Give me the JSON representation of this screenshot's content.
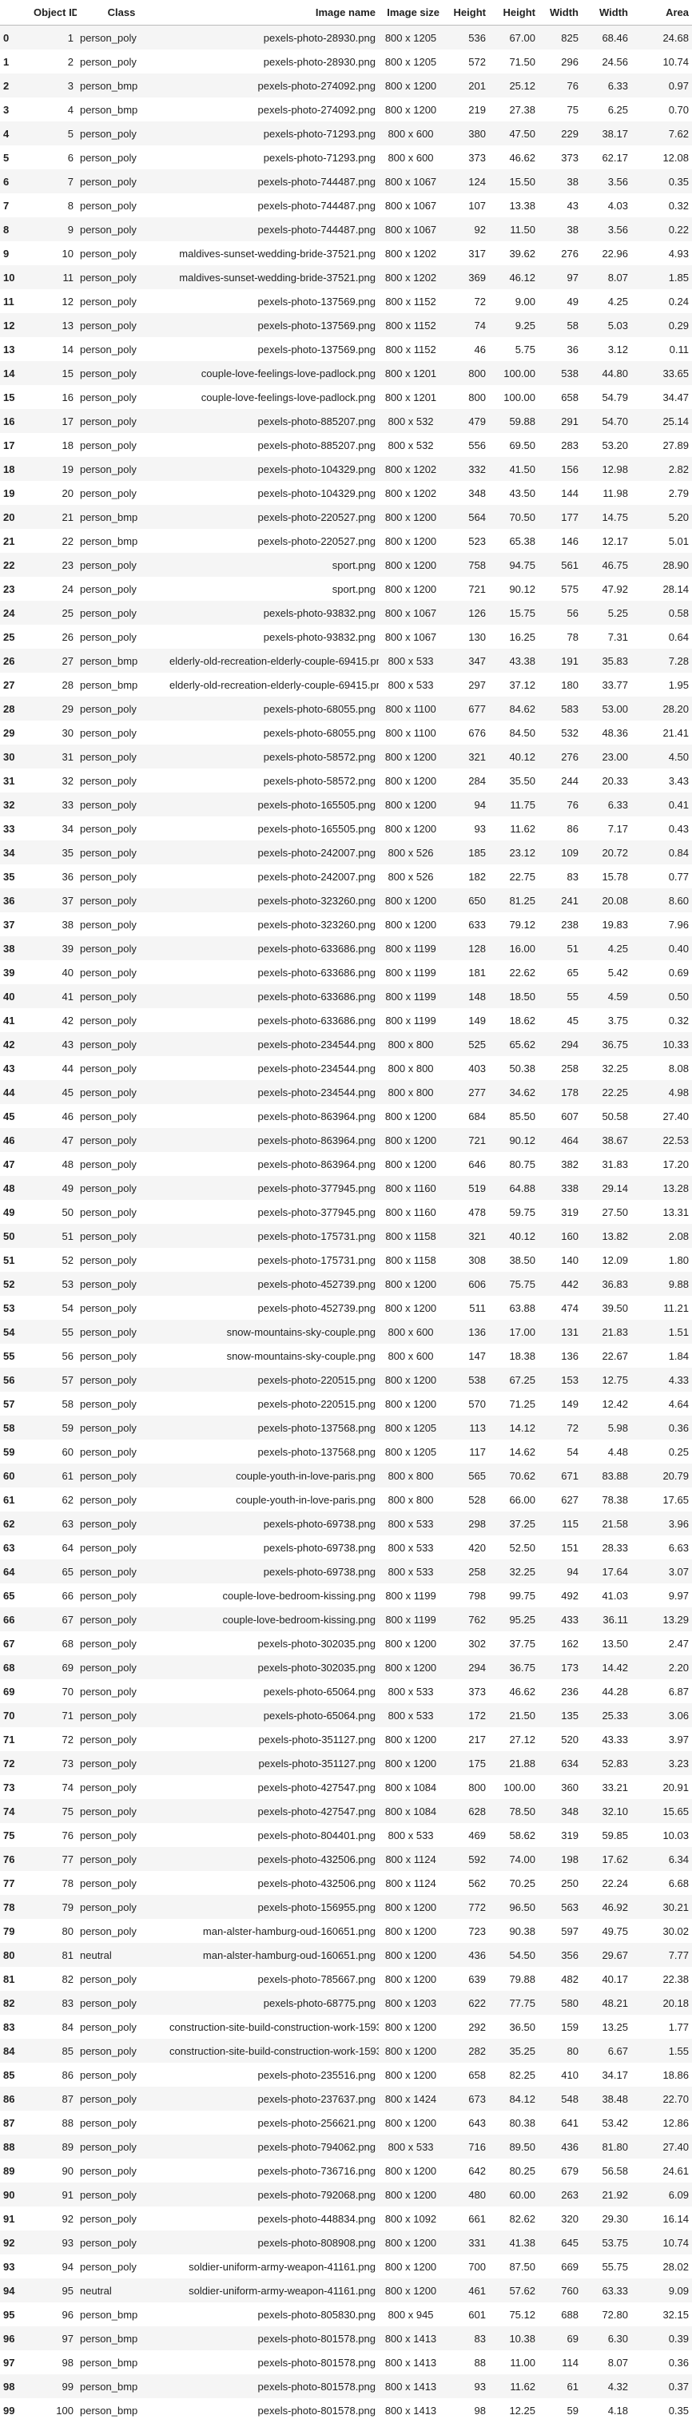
{
  "columns": [
    "",
    "Object ID",
    "Class",
    "Image name",
    "Image size",
    "Height",
    "Height",
    "Width",
    "Width",
    "Area"
  ],
  "rows": [
    [
      "0",
      "1",
      "person_poly",
      "pexels-photo-28930.png",
      "800 x 1205",
      "536",
      "67.00",
      "825",
      "68.46",
      "24.68"
    ],
    [
      "1",
      "2",
      "person_poly",
      "pexels-photo-28930.png",
      "800 x 1205",
      "572",
      "71.50",
      "296",
      "24.56",
      "10.74"
    ],
    [
      "2",
      "3",
      "person_bmp",
      "pexels-photo-274092.png",
      "800 x 1200",
      "201",
      "25.12",
      "76",
      "6.33",
      "0.97"
    ],
    [
      "3",
      "4",
      "person_bmp",
      "pexels-photo-274092.png",
      "800 x 1200",
      "219",
      "27.38",
      "75",
      "6.25",
      "0.70"
    ],
    [
      "4",
      "5",
      "person_poly",
      "pexels-photo-71293.png",
      "800 x 600",
      "380",
      "47.50",
      "229",
      "38.17",
      "7.62"
    ],
    [
      "5",
      "6",
      "person_poly",
      "pexels-photo-71293.png",
      "800 x 600",
      "373",
      "46.62",
      "373",
      "62.17",
      "12.08"
    ],
    [
      "6",
      "7",
      "person_poly",
      "pexels-photo-744487.png",
      "800 x 1067",
      "124",
      "15.50",
      "38",
      "3.56",
      "0.35"
    ],
    [
      "7",
      "8",
      "person_poly",
      "pexels-photo-744487.png",
      "800 x 1067",
      "107",
      "13.38",
      "43",
      "4.03",
      "0.32"
    ],
    [
      "8",
      "9",
      "person_poly",
      "pexels-photo-744487.png",
      "800 x 1067",
      "92",
      "11.50",
      "38",
      "3.56",
      "0.22"
    ],
    [
      "9",
      "10",
      "person_poly",
      "maldives-sunset-wedding-bride-37521.png",
      "800 x 1202",
      "317",
      "39.62",
      "276",
      "22.96",
      "4.93"
    ],
    [
      "10",
      "11",
      "person_poly",
      "maldives-sunset-wedding-bride-37521.png",
      "800 x 1202",
      "369",
      "46.12",
      "97",
      "8.07",
      "1.85"
    ],
    [
      "11",
      "12",
      "person_poly",
      "pexels-photo-137569.png",
      "800 x 1152",
      "72",
      "9.00",
      "49",
      "4.25",
      "0.24"
    ],
    [
      "12",
      "13",
      "person_poly",
      "pexels-photo-137569.png",
      "800 x 1152",
      "74",
      "9.25",
      "58",
      "5.03",
      "0.29"
    ],
    [
      "13",
      "14",
      "person_poly",
      "pexels-photo-137569.png",
      "800 x 1152",
      "46",
      "5.75",
      "36",
      "3.12",
      "0.11"
    ],
    [
      "14",
      "15",
      "person_poly",
      "couple-love-feelings-love-padlock.png",
      "800 x 1201",
      "800",
      "100.00",
      "538",
      "44.80",
      "33.65"
    ],
    [
      "15",
      "16",
      "person_poly",
      "couple-love-feelings-love-padlock.png",
      "800 x 1201",
      "800",
      "100.00",
      "658",
      "54.79",
      "34.47"
    ],
    [
      "16",
      "17",
      "person_poly",
      "pexels-photo-885207.png",
      "800 x 532",
      "479",
      "59.88",
      "291",
      "54.70",
      "25.14"
    ],
    [
      "17",
      "18",
      "person_poly",
      "pexels-photo-885207.png",
      "800 x 532",
      "556",
      "69.50",
      "283",
      "53.20",
      "27.89"
    ],
    [
      "18",
      "19",
      "person_poly",
      "pexels-photo-104329.png",
      "800 x 1202",
      "332",
      "41.50",
      "156",
      "12.98",
      "2.82"
    ],
    [
      "19",
      "20",
      "person_poly",
      "pexels-photo-104329.png",
      "800 x 1202",
      "348",
      "43.50",
      "144",
      "11.98",
      "2.79"
    ],
    [
      "20",
      "21",
      "person_bmp",
      "pexels-photo-220527.png",
      "800 x 1200",
      "564",
      "70.50",
      "177",
      "14.75",
      "5.20"
    ],
    [
      "21",
      "22",
      "person_bmp",
      "pexels-photo-220527.png",
      "800 x 1200",
      "523",
      "65.38",
      "146",
      "12.17",
      "5.01"
    ],
    [
      "22",
      "23",
      "person_poly",
      "sport.png",
      "800 x 1200",
      "758",
      "94.75",
      "561",
      "46.75",
      "28.90"
    ],
    [
      "23",
      "24",
      "person_poly",
      "sport.png",
      "800 x 1200",
      "721",
      "90.12",
      "575",
      "47.92",
      "28.14"
    ],
    [
      "24",
      "25",
      "person_poly",
      "pexels-photo-93832.png",
      "800 x 1067",
      "126",
      "15.75",
      "56",
      "5.25",
      "0.58"
    ],
    [
      "25",
      "26",
      "person_poly",
      "pexels-photo-93832.png",
      "800 x 1067",
      "130",
      "16.25",
      "78",
      "7.31",
      "0.64"
    ],
    [
      "26",
      "27",
      "person_bmp",
      "elderly-old-recreation-elderly-couple-69415.png",
      "800 x 533",
      "347",
      "43.38",
      "191",
      "35.83",
      "7.28"
    ],
    [
      "27",
      "28",
      "person_bmp",
      "elderly-old-recreation-elderly-couple-69415.png",
      "800 x 533",
      "297",
      "37.12",
      "180",
      "33.77",
      "1.95"
    ],
    [
      "28",
      "29",
      "person_poly",
      "pexels-photo-68055.png",
      "800 x 1100",
      "677",
      "84.62",
      "583",
      "53.00",
      "28.20"
    ],
    [
      "29",
      "30",
      "person_poly",
      "pexels-photo-68055.png",
      "800 x 1100",
      "676",
      "84.50",
      "532",
      "48.36",
      "21.41"
    ],
    [
      "30",
      "31",
      "person_poly",
      "pexels-photo-58572.png",
      "800 x 1200",
      "321",
      "40.12",
      "276",
      "23.00",
      "4.50"
    ],
    [
      "31",
      "32",
      "person_poly",
      "pexels-photo-58572.png",
      "800 x 1200",
      "284",
      "35.50",
      "244",
      "20.33",
      "3.43"
    ],
    [
      "32",
      "33",
      "person_poly",
      "pexels-photo-165505.png",
      "800 x 1200",
      "94",
      "11.75",
      "76",
      "6.33",
      "0.41"
    ],
    [
      "33",
      "34",
      "person_poly",
      "pexels-photo-165505.png",
      "800 x 1200",
      "93",
      "11.62",
      "86",
      "7.17",
      "0.43"
    ],
    [
      "34",
      "35",
      "person_poly",
      "pexels-photo-242007.png",
      "800 x 526",
      "185",
      "23.12",
      "109",
      "20.72",
      "0.84"
    ],
    [
      "35",
      "36",
      "person_poly",
      "pexels-photo-242007.png",
      "800 x 526",
      "182",
      "22.75",
      "83",
      "15.78",
      "0.77"
    ],
    [
      "36",
      "37",
      "person_poly",
      "pexels-photo-323260.png",
      "800 x 1200",
      "650",
      "81.25",
      "241",
      "20.08",
      "8.60"
    ],
    [
      "37",
      "38",
      "person_poly",
      "pexels-photo-323260.png",
      "800 x 1200",
      "633",
      "79.12",
      "238",
      "19.83",
      "7.96"
    ],
    [
      "38",
      "39",
      "person_poly",
      "pexels-photo-633686.png",
      "800 x 1199",
      "128",
      "16.00",
      "51",
      "4.25",
      "0.40"
    ],
    [
      "39",
      "40",
      "person_poly",
      "pexels-photo-633686.png",
      "800 x 1199",
      "181",
      "22.62",
      "65",
      "5.42",
      "0.69"
    ],
    [
      "40",
      "41",
      "person_poly",
      "pexels-photo-633686.png",
      "800 x 1199",
      "148",
      "18.50",
      "55",
      "4.59",
      "0.50"
    ],
    [
      "41",
      "42",
      "person_poly",
      "pexels-photo-633686.png",
      "800 x 1199",
      "149",
      "18.62",
      "45",
      "3.75",
      "0.32"
    ],
    [
      "42",
      "43",
      "person_poly",
      "pexels-photo-234544.png",
      "800 x 800",
      "525",
      "65.62",
      "294",
      "36.75",
      "10.33"
    ],
    [
      "43",
      "44",
      "person_poly",
      "pexels-photo-234544.png",
      "800 x 800",
      "403",
      "50.38",
      "258",
      "32.25",
      "8.08"
    ],
    [
      "44",
      "45",
      "person_poly",
      "pexels-photo-234544.png",
      "800 x 800",
      "277",
      "34.62",
      "178",
      "22.25",
      "4.98"
    ],
    [
      "45",
      "46",
      "person_poly",
      "pexels-photo-863964.png",
      "800 x 1200",
      "684",
      "85.50",
      "607",
      "50.58",
      "27.40"
    ],
    [
      "46",
      "47",
      "person_poly",
      "pexels-photo-863964.png",
      "800 x 1200",
      "721",
      "90.12",
      "464",
      "38.67",
      "22.53"
    ],
    [
      "47",
      "48",
      "person_poly",
      "pexels-photo-863964.png",
      "800 x 1200",
      "646",
      "80.75",
      "382",
      "31.83",
      "17.20"
    ],
    [
      "48",
      "49",
      "person_poly",
      "pexels-photo-377945.png",
      "800 x 1160",
      "519",
      "64.88",
      "338",
      "29.14",
      "13.28"
    ],
    [
      "49",
      "50",
      "person_poly",
      "pexels-photo-377945.png",
      "800 x 1160",
      "478",
      "59.75",
      "319",
      "27.50",
      "13.31"
    ],
    [
      "50",
      "51",
      "person_poly",
      "pexels-photo-175731.png",
      "800 x 1158",
      "321",
      "40.12",
      "160",
      "13.82",
      "2.08"
    ],
    [
      "51",
      "52",
      "person_poly",
      "pexels-photo-175731.png",
      "800 x 1158",
      "308",
      "38.50",
      "140",
      "12.09",
      "1.80"
    ],
    [
      "52",
      "53",
      "person_poly",
      "pexels-photo-452739.png",
      "800 x 1200",
      "606",
      "75.75",
      "442",
      "36.83",
      "9.88"
    ],
    [
      "53",
      "54",
      "person_poly",
      "pexels-photo-452739.png",
      "800 x 1200",
      "511",
      "63.88",
      "474",
      "39.50",
      "11.21"
    ],
    [
      "54",
      "55",
      "person_poly",
      "snow-mountains-sky-couple.png",
      "800 x 600",
      "136",
      "17.00",
      "131",
      "21.83",
      "1.51"
    ],
    [
      "55",
      "56",
      "person_poly",
      "snow-mountains-sky-couple.png",
      "800 x 600",
      "147",
      "18.38",
      "136",
      "22.67",
      "1.84"
    ],
    [
      "56",
      "57",
      "person_poly",
      "pexels-photo-220515.png",
      "800 x 1200",
      "538",
      "67.25",
      "153",
      "12.75",
      "4.33"
    ],
    [
      "57",
      "58",
      "person_poly",
      "pexels-photo-220515.png",
      "800 x 1200",
      "570",
      "71.25",
      "149",
      "12.42",
      "4.64"
    ],
    [
      "58",
      "59",
      "person_poly",
      "pexels-photo-137568.png",
      "800 x 1205",
      "113",
      "14.12",
      "72",
      "5.98",
      "0.36"
    ],
    [
      "59",
      "60",
      "person_poly",
      "pexels-photo-137568.png",
      "800 x 1205",
      "117",
      "14.62",
      "54",
      "4.48",
      "0.25"
    ],
    [
      "60",
      "61",
      "person_poly",
      "couple-youth-in-love-paris.png",
      "800 x 800",
      "565",
      "70.62",
      "671",
      "83.88",
      "20.79"
    ],
    [
      "61",
      "62",
      "person_poly",
      "couple-youth-in-love-paris.png",
      "800 x 800",
      "528",
      "66.00",
      "627",
      "78.38",
      "17.65"
    ],
    [
      "62",
      "63",
      "person_poly",
      "pexels-photo-69738.png",
      "800 x 533",
      "298",
      "37.25",
      "115",
      "21.58",
      "3.96"
    ],
    [
      "63",
      "64",
      "person_poly",
      "pexels-photo-69738.png",
      "800 x 533",
      "420",
      "52.50",
      "151",
      "28.33",
      "6.63"
    ],
    [
      "64",
      "65",
      "person_poly",
      "pexels-photo-69738.png",
      "800 x 533",
      "258",
      "32.25",
      "94",
      "17.64",
      "3.07"
    ],
    [
      "65",
      "66",
      "person_poly",
      "couple-love-bedroom-kissing.png",
      "800 x 1199",
      "798",
      "99.75",
      "492",
      "41.03",
      "9.97"
    ],
    [
      "66",
      "67",
      "person_poly",
      "couple-love-bedroom-kissing.png",
      "800 x 1199",
      "762",
      "95.25",
      "433",
      "36.11",
      "13.29"
    ],
    [
      "67",
      "68",
      "person_poly",
      "pexels-photo-302035.png",
      "800 x 1200",
      "302",
      "37.75",
      "162",
      "13.50",
      "2.47"
    ],
    [
      "68",
      "69",
      "person_poly",
      "pexels-photo-302035.png",
      "800 x 1200",
      "294",
      "36.75",
      "173",
      "14.42",
      "2.20"
    ],
    [
      "69",
      "70",
      "person_poly",
      "pexels-photo-65064.png",
      "800 x 533",
      "373",
      "46.62",
      "236",
      "44.28",
      "6.87"
    ],
    [
      "70",
      "71",
      "person_poly",
      "pexels-photo-65064.png",
      "800 x 533",
      "172",
      "21.50",
      "135",
      "25.33",
      "3.06"
    ],
    [
      "71",
      "72",
      "person_poly",
      "pexels-photo-351127.png",
      "800 x 1200",
      "217",
      "27.12",
      "520",
      "43.33",
      "3.97"
    ],
    [
      "72",
      "73",
      "person_poly",
      "pexels-photo-351127.png",
      "800 x 1200",
      "175",
      "21.88",
      "634",
      "52.83",
      "3.23"
    ],
    [
      "73",
      "74",
      "person_poly",
      "pexels-photo-427547.png",
      "800 x 1084",
      "800",
      "100.00",
      "360",
      "33.21",
      "20.91"
    ],
    [
      "74",
      "75",
      "person_poly",
      "pexels-photo-427547.png",
      "800 x 1084",
      "628",
      "78.50",
      "348",
      "32.10",
      "15.65"
    ],
    [
      "75",
      "76",
      "person_poly",
      "pexels-photo-804401.png",
      "800 x 533",
      "469",
      "58.62",
      "319",
      "59.85",
      "10.03"
    ],
    [
      "76",
      "77",
      "person_poly",
      "pexels-photo-432506.png",
      "800 x 1124",
      "592",
      "74.00",
      "198",
      "17.62",
      "6.34"
    ],
    [
      "77",
      "78",
      "person_poly",
      "pexels-photo-432506.png",
      "800 x 1124",
      "562",
      "70.25",
      "250",
      "22.24",
      "6.68"
    ],
    [
      "78",
      "79",
      "person_poly",
      "pexels-photo-156955.png",
      "800 x 1200",
      "772",
      "96.50",
      "563",
      "46.92",
      "30.21"
    ],
    [
      "79",
      "80",
      "person_poly",
      "man-alster-hamburg-oud-160651.png",
      "800 x 1200",
      "723",
      "90.38",
      "597",
      "49.75",
      "30.02"
    ],
    [
      "80",
      "81",
      "neutral",
      "man-alster-hamburg-oud-160651.png",
      "800 x 1200",
      "436",
      "54.50",
      "356",
      "29.67",
      "7.77"
    ],
    [
      "81",
      "82",
      "person_poly",
      "pexels-photo-785667.png",
      "800 x 1200",
      "639",
      "79.88",
      "482",
      "40.17",
      "22.38"
    ],
    [
      "82",
      "83",
      "person_poly",
      "pexels-photo-68775.png",
      "800 x 1203",
      "622",
      "77.75",
      "580",
      "48.21",
      "20.18"
    ],
    [
      "83",
      "84",
      "person_poly",
      "construction-site-build-construction-work-1593...",
      "800 x 1200",
      "292",
      "36.50",
      "159",
      "13.25",
      "1.77"
    ],
    [
      "84",
      "85",
      "person_poly",
      "construction-site-build-construction-work-1593...",
      "800 x 1200",
      "282",
      "35.25",
      "80",
      "6.67",
      "1.55"
    ],
    [
      "85",
      "86",
      "person_poly",
      "pexels-photo-235516.png",
      "800 x 1200",
      "658",
      "82.25",
      "410",
      "34.17",
      "18.86"
    ],
    [
      "86",
      "87",
      "person_poly",
      "pexels-photo-237637.png",
      "800 x 1424",
      "673",
      "84.12",
      "548",
      "38.48",
      "22.70"
    ],
    [
      "87",
      "88",
      "person_poly",
      "pexels-photo-256621.png",
      "800 x 1200",
      "643",
      "80.38",
      "641",
      "53.42",
      "12.86"
    ],
    [
      "88",
      "89",
      "person_poly",
      "pexels-photo-794062.png",
      "800 x 533",
      "716",
      "89.50",
      "436",
      "81.80",
      "27.40"
    ],
    [
      "89",
      "90",
      "person_poly",
      "pexels-photo-736716.png",
      "800 x 1200",
      "642",
      "80.25",
      "679",
      "56.58",
      "24.61"
    ],
    [
      "90",
      "91",
      "person_poly",
      "pexels-photo-792068.png",
      "800 x 1200",
      "480",
      "60.00",
      "263",
      "21.92",
      "6.09"
    ],
    [
      "91",
      "92",
      "person_poly",
      "pexels-photo-448834.png",
      "800 x 1092",
      "661",
      "82.62",
      "320",
      "29.30",
      "16.14"
    ],
    [
      "92",
      "93",
      "person_poly",
      "pexels-photo-808908.png",
      "800 x 1200",
      "331",
      "41.38",
      "645",
      "53.75",
      "10.74"
    ],
    [
      "93",
      "94",
      "person_poly",
      "soldier-uniform-army-weapon-41161.png",
      "800 x 1200",
      "700",
      "87.50",
      "669",
      "55.75",
      "28.02"
    ],
    [
      "94",
      "95",
      "neutral",
      "soldier-uniform-army-weapon-41161.png",
      "800 x 1200",
      "461",
      "57.62",
      "760",
      "63.33",
      "9.09"
    ],
    [
      "95",
      "96",
      "person_bmp",
      "pexels-photo-805830.png",
      "800 x 945",
      "601",
      "75.12",
      "688",
      "72.80",
      "32.15"
    ],
    [
      "96",
      "97",
      "person_bmp",
      "pexels-photo-801578.png",
      "800 x 1413",
      "83",
      "10.38",
      "69",
      "6.30",
      "0.39"
    ],
    [
      "97",
      "98",
      "person_bmp",
      "pexels-photo-801578.png",
      "800 x 1413",
      "88",
      "11.00",
      "114",
      "8.07",
      "0.36"
    ],
    [
      "98",
      "99",
      "person_bmp",
      "pexels-photo-801578.png",
      "800 x 1413",
      "93",
      "11.62",
      "61",
      "4.32",
      "0.37"
    ],
    [
      "99",
      "100",
      "person_bmp",
      "pexels-photo-801578.png",
      "800 x 1413",
      "98",
      "12.25",
      "59",
      "4.18",
      "0.35"
    ]
  ]
}
